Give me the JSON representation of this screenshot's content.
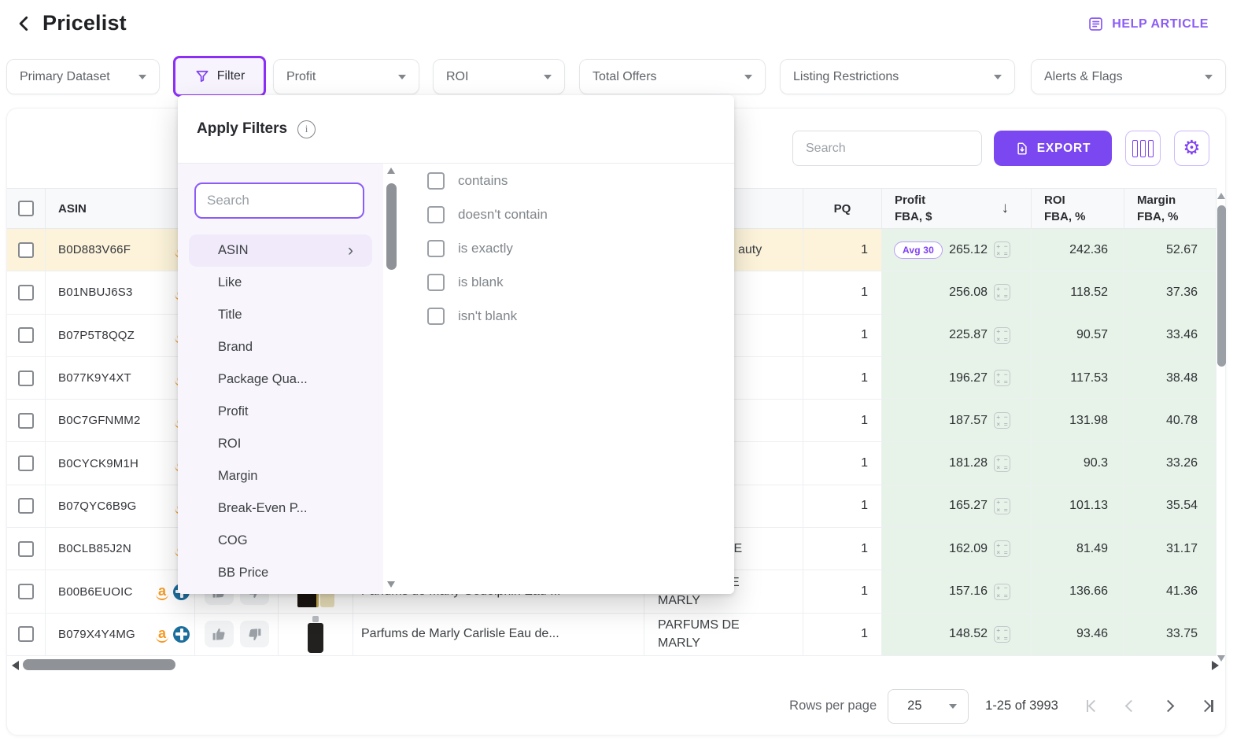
{
  "header": {
    "title": "Pricelist",
    "help_label": "HELP ARTICLE"
  },
  "filter_bar": {
    "primary_dataset_label": "Primary Dataset",
    "filter_label": "Filter",
    "dropdowns": [
      {
        "label": "Profit"
      },
      {
        "label": "ROI"
      },
      {
        "label": "Total Offers"
      },
      {
        "label": "Listing Restrictions"
      },
      {
        "label": "Alerts & Flags"
      }
    ]
  },
  "filter_panel": {
    "title": "Apply Filters",
    "search_placeholder": "Search",
    "fields": [
      {
        "label": "ASIN",
        "active": true
      },
      {
        "label": "Like"
      },
      {
        "label": "Title"
      },
      {
        "label": "Brand"
      },
      {
        "label": "Package Qua..."
      },
      {
        "label": "Profit"
      },
      {
        "label": "ROI"
      },
      {
        "label": "Margin"
      },
      {
        "label": "Break-Even P..."
      },
      {
        "label": "COG"
      },
      {
        "label": "BB Price"
      }
    ],
    "conditions": [
      "contains",
      "doesn't contain",
      "is exactly",
      "is blank",
      "isn't blank"
    ]
  },
  "toolbar": {
    "search_placeholder": "Search",
    "export_label": "EXPORT"
  },
  "table": {
    "headers": {
      "asin": "ASIN",
      "pq": "PQ",
      "profit_line1": "Profit",
      "profit_line2": "FBA, $",
      "roi_line1": "ROI",
      "roi_line2": "FBA, %",
      "margin_line1": "Margin",
      "margin_line2": "FBA, %"
    },
    "rows": [
      {
        "asin": "B0D883V66F",
        "pq": "1",
        "profit_badge": "Avg 30",
        "profit": "265.12",
        "roi": "242.36",
        "margin": "52.67",
        "highlight": true,
        "brand": "auty"
      },
      {
        "asin": "B01NBUJ6S3",
        "pq": "1",
        "profit": "256.08",
        "roi": "118.52",
        "margin": "37.36"
      },
      {
        "asin": "B07P5T8QQZ",
        "pq": "1",
        "profit": "225.87",
        "roi": "90.57",
        "margin": "33.46"
      },
      {
        "asin": "B077K9Y4XT",
        "pq": "1",
        "profit": "196.27",
        "roi": "117.53",
        "margin": "38.48"
      },
      {
        "asin": "B0C7GFNMM2",
        "pq": "1",
        "profit": "187.57",
        "roi": "131.98",
        "margin": "40.78"
      },
      {
        "asin": "B0CYCK9M1H",
        "pq": "1",
        "profit": "181.28",
        "roi": "90.3",
        "margin": "33.26"
      },
      {
        "asin": "B07QYC6B9G",
        "pq": "1",
        "profit": "165.27",
        "roi": "101.13",
        "margin": "35.54"
      },
      {
        "asin": "B0CLB85J2N",
        "pq": "1",
        "profit": "162.09",
        "roi": "81.49",
        "margin": "31.17",
        "brand": "DE"
      },
      {
        "asin": "B00B6EUOIC",
        "pq": "1",
        "profit": "157.16",
        "roi": "136.66",
        "margin": "41.36",
        "blue_icon": true,
        "thumbs": true,
        "image": "box",
        "title": "Parfums de Marly Godolphin Eau ...",
        "brand": "PARFUMS DE MARLY"
      },
      {
        "asin": "B079X4Y4MG",
        "pq": "1",
        "profit": "148.52",
        "roi": "93.46",
        "margin": "33.75",
        "blue_icon": true,
        "thumbs": true,
        "image": "bottle",
        "title": "Parfums de Marly Carlisle Eau de...",
        "brand": "PARFUMS DE MARLY"
      }
    ]
  },
  "pagination": {
    "rows_per_page_label": "Rows per page",
    "rows_per_page_value": "25",
    "range": "1-25 of 3993"
  },
  "colors": {
    "accent": "#7e3ff2",
    "accent_light": "#8b5cf6",
    "green_cell": "#e7f3e8",
    "highlight_row": "#fcf3da",
    "amazon_orange": "#f59a23",
    "blue_badge": "#1c6e9c"
  }
}
